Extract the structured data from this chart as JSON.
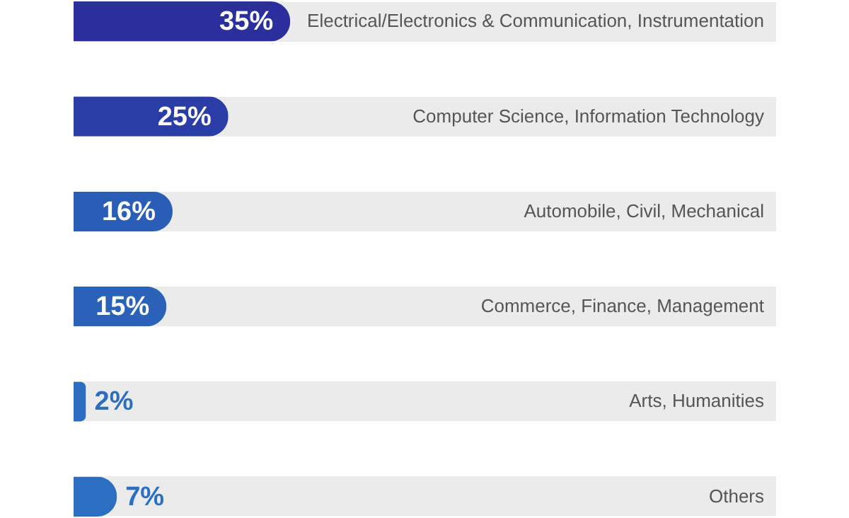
{
  "chart_data": {
    "type": "bar",
    "orientation": "horizontal",
    "grid": "y",
    "categories": [
      "Electrical/Electronics & Communication, Instrumentation",
      "Computer Science, Information Technology",
      "Automobile, Civil, Mechanical",
      "Commerce, Finance, Management",
      "Arts, Humanities",
      "Others"
    ],
    "values": [
      35,
      25,
      16,
      15,
      2,
      7
    ],
    "value_labels": [
      "35%",
      "25%",
      "16%",
      "15%",
      "2%",
      "7%"
    ],
    "colors": [
      "#2b2f9c",
      "#2a3ca6",
      "#2a5db5",
      "#2a62b8",
      "#2c6dbf",
      "#2c6fc0"
    ]
  }
}
